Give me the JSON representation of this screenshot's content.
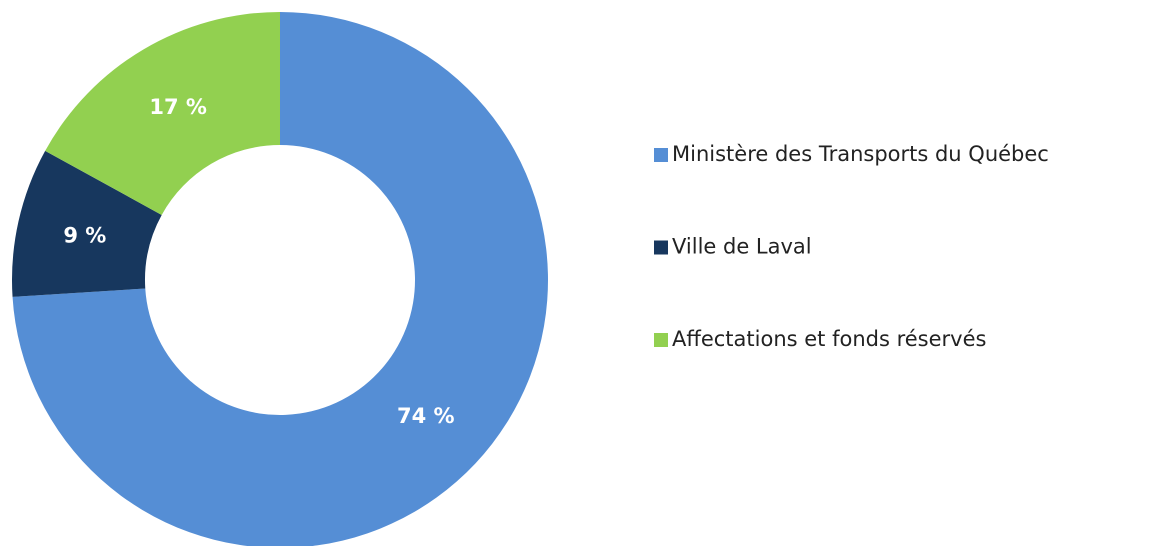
{
  "chart_data": {
    "type": "donut",
    "categories": [
      "Ministère des Transports du Québec",
      "Ville de Laval",
      "Affectations et fonds réservés"
    ],
    "values": [
      74,
      9,
      17
    ],
    "value_labels": [
      "74 %",
      "9 %",
      "17 %"
    ],
    "colors": [
      "#558ed5",
      "#17375e",
      "#92d050"
    ],
    "legend": "right"
  }
}
